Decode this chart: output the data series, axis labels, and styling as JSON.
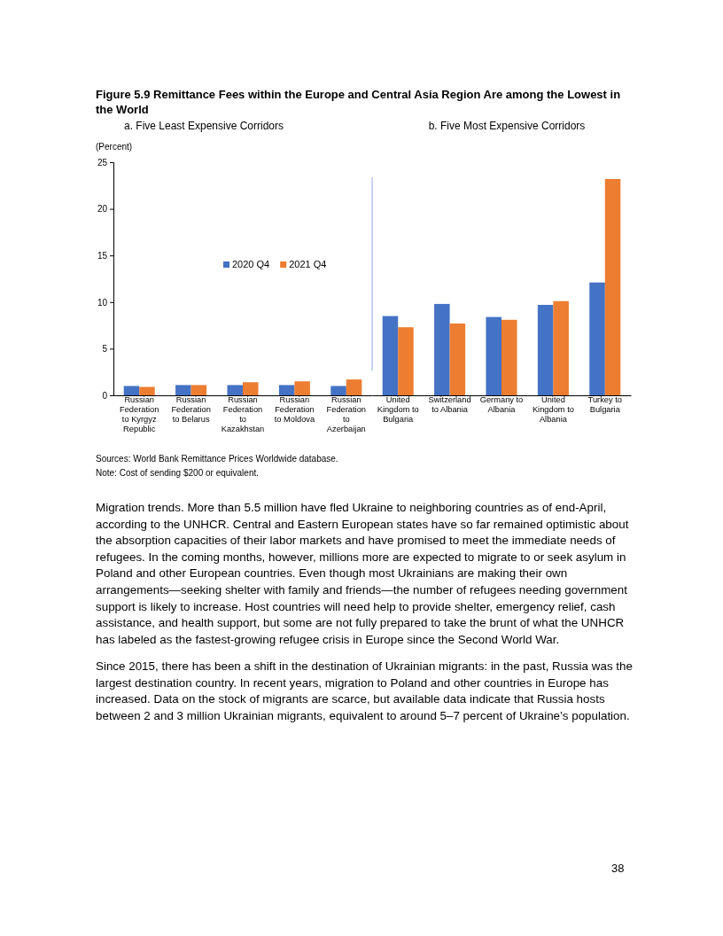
{
  "chart_data": [
    {
      "type": "bar",
      "title": "Figure 5.9 Remittance Fees within the Europe and Central Asia Region Are among the Lowest in the World",
      "subtitle": "a. Five Least Expensive Corridors",
      "ylabel": "(Percent)",
      "categories": [
        "Russian Federation to Kyrgyz Republic",
        "Russian Federation to Belarus",
        "Russian Federation to Kazakhstan",
        "Russian Federation to Moldova",
        "Russian Federation to Azerbaijan"
      ],
      "series": [
        {
          "name": "2020 Q4",
          "color": "#4472c4",
          "values": [
            1.0,
            1.1,
            1.1,
            1.1,
            1.0
          ]
        },
        {
          "name": "2021 Q4",
          "color": "#ed7d31",
          "values": [
            0.9,
            1.1,
            1.4,
            1.5,
            1.7
          ]
        }
      ],
      "ylim": [
        0,
        25
      ],
      "yticks": [
        0,
        5,
        10,
        15,
        20,
        25
      ],
      "grid": false,
      "legend": "center"
    },
    {
      "type": "bar",
      "subtitle": "b. Five Most Expensive Corridors",
      "categories": [
        "United Kingdom to Bulgaria",
        "Switzerland to Albania",
        "Germany to Albania",
        "United Kingdom to Albania",
        "Turkey to Bulgaria"
      ],
      "series": [
        {
          "color": "#4472c4",
          "values": [
            8.5,
            9.8,
            8.4,
            9.7,
            12.1
          ]
        },
        {
          "color": "#ed7d31",
          "values": [
            7.3,
            7.7,
            8.1,
            10.1,
            23.2
          ]
        }
      ],
      "ylim": [
        0,
        25
      ],
      "yticks": [
        0,
        5,
        10,
        15,
        20,
        25
      ],
      "tick_labels": "x",
      "grid": false,
      "legend": false,
      "annotations": [
        "Sources: World Bank Remittance Prices Worldwide database.",
        "Note: Cost of sending $200 or equivalent.",
        "Migration trends. More than 5.5 million have fled Ukraine to neighboring countries as of end-April, according to the UNHCR. Central and Eastern European states have so far remained optimistic about the absorption capacities of their labor markets and have promised to meet the immediate needs of refugees. In the coming months, however, millions more are expected to migrate to or seek asylum in Poland and other European countries. Even though most Ukrainians are making their own arrangements—seeking shelter with family and friends—the number of refugees needing government support is likely to increase. Host countries will need help to provide shelter, emergency relief, cash assistance, and health support, but some are not fully prepared to take the brunt of what the UNHCR has labeled as the fastest-growing refugee crisis in Europe since the Second World War.",
        "Since 2015, there has been a shift in the destination of Ukrainian migrants: in the past, Russia was the largest destination country. In recent years, migration to Poland and other countries in Europe has increased. Data on the stock of migrants are scarce, but available data indicate that Russia hosts between 2 and 3 million Ukrainian migrants, equivalent to around 5–7 percent of Ukraine’s population.",
        "38"
      ]
    }
  ]
}
